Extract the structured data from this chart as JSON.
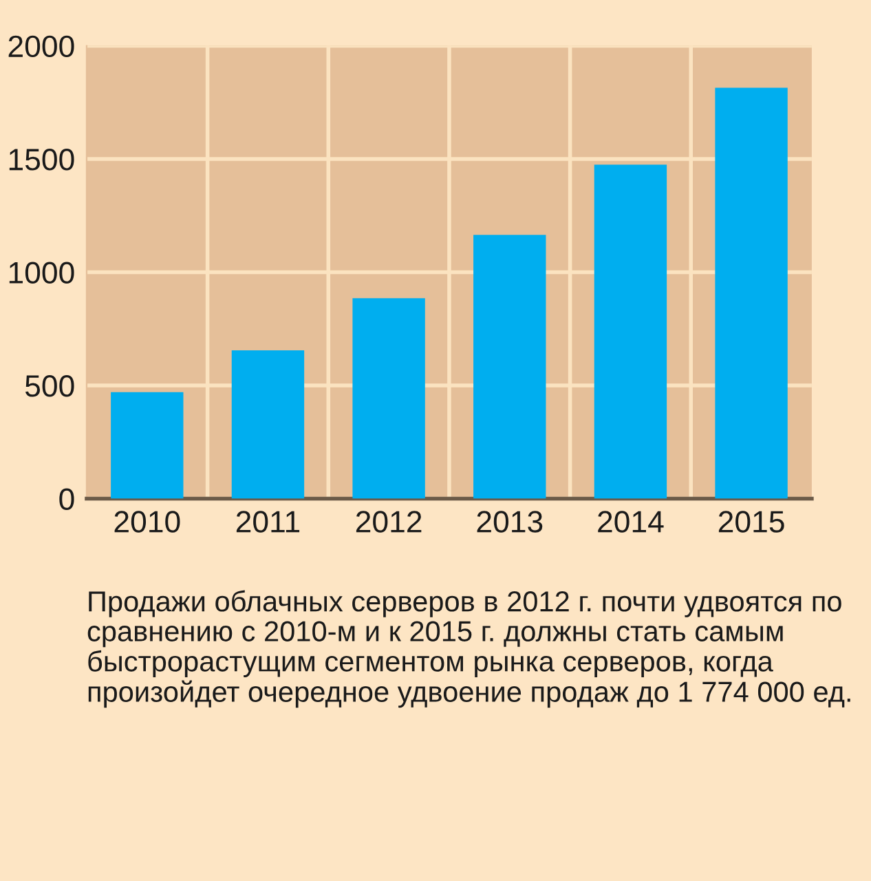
{
  "chart_data": {
    "type": "bar",
    "categories": [
      "2010",
      "2011",
      "2012",
      "2013",
      "2014",
      "2015"
    ],
    "values": [
      470,
      655,
      885,
      1165,
      1475,
      1815
    ],
    "color": "#00aeef",
    "ylim": [
      0,
      2000
    ],
    "yticks": [
      0,
      500,
      1000,
      1500,
      2000
    ],
    "grid": true,
    "annotations": [
      "Продажи облачных серверов в 2012 г. почти удвоятся по сравнению с 2010-м и к 2015 г. должны стать самым быстрорастущим сегментом рынка серверов, когда произойдет очередное удвоение продаж до 1 774 000 ед."
    ]
  }
}
